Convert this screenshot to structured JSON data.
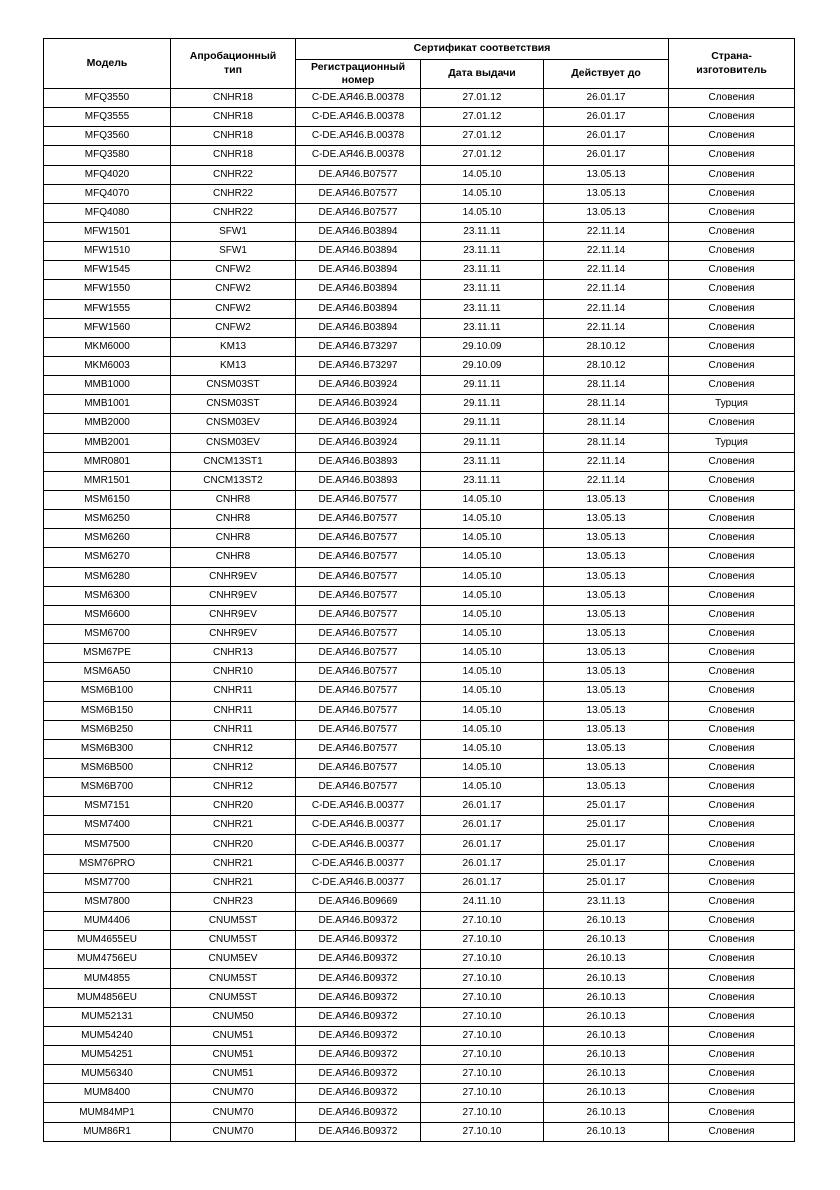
{
  "table": {
    "headers": {
      "model": "Модель",
      "approbation_type": "Апробационный\nтип",
      "certificate_group": "Сертификат соответствия",
      "reg_number": "Регистрационный\nномер",
      "issue_date": "Дата выдачи",
      "valid_until": "Действует до",
      "country": "Страна-\nизготовитель"
    },
    "rows": [
      [
        "MFQ3550",
        "CNHR18",
        "C-DE.АЯ46.B.00378",
        "27.01.12",
        "26.01.17",
        "Словения"
      ],
      [
        "MFQ3555",
        "CNHR18",
        "C-DE.АЯ46.B.00378",
        "27.01.12",
        "26.01.17",
        "Словения"
      ],
      [
        "MFQ3560",
        "CNHR18",
        "C-DE.АЯ46.B.00378",
        "27.01.12",
        "26.01.17",
        "Словения"
      ],
      [
        "MFQ3580",
        "CNHR18",
        "C-DE.АЯ46.B.00378",
        "27.01.12",
        "26.01.17",
        "Словения"
      ],
      [
        "MFQ4020",
        "CNHR22",
        "DE.АЯ46.B07577",
        "14.05.10",
        "13.05.13",
        "Словения"
      ],
      [
        "MFQ4070",
        "CNHR22",
        "DE.АЯ46.B07577",
        "14.05.10",
        "13.05.13",
        "Словения"
      ],
      [
        "MFQ4080",
        "CNHR22",
        "DE.АЯ46.B07577",
        "14.05.10",
        "13.05.13",
        "Словения"
      ],
      [
        "MFW1501",
        "SFW1",
        "DE.АЯ46.B03894",
        "23.11.11",
        "22.11.14",
        "Словения"
      ],
      [
        "MFW1510",
        "SFW1",
        "DE.АЯ46.B03894",
        "23.11.11",
        "22.11.14",
        "Словения"
      ],
      [
        "MFW1545",
        "CNFW2",
        "DE.АЯ46.B03894",
        "23.11.11",
        "22.11.14",
        "Словения"
      ],
      [
        "MFW1550",
        "CNFW2",
        "DE.АЯ46.B03894",
        "23.11.11",
        "22.11.14",
        "Словения"
      ],
      [
        "MFW1555",
        "CNFW2",
        "DE.АЯ46.B03894",
        "23.11.11",
        "22.11.14",
        "Словения"
      ],
      [
        "MFW1560",
        "CNFW2",
        "DE.АЯ46.B03894",
        "23.11.11",
        "22.11.14",
        "Словения"
      ],
      [
        "MKM6000",
        "KM13",
        "DE.АЯ46.B73297",
        "29.10.09",
        "28.10.12",
        "Словения"
      ],
      [
        "MKM6003",
        "KM13",
        "DE.АЯ46.B73297",
        "29.10.09",
        "28.10.12",
        "Словения"
      ],
      [
        "MMB1000",
        "CNSM03ST",
        "DE.АЯ46.B03924",
        "29.11.11",
        "28.11.14",
        "Словения"
      ],
      [
        "MMB1001",
        "CNSM03ST",
        "DE.АЯ46.B03924",
        "29.11.11",
        "28.11.14",
        "Турция"
      ],
      [
        "MMB2000",
        "CNSM03EV",
        "DE.АЯ46.B03924",
        "29.11.11",
        "28.11.14",
        "Словения"
      ],
      [
        "MMB2001",
        "CNSM03EV",
        "DE.АЯ46.B03924",
        "29.11.11",
        "28.11.14",
        "Турция"
      ],
      [
        "MMR0801",
        "CNCM13ST1",
        "DE.АЯ46.B03893",
        "23.11.11",
        "22.11.14",
        "Словения"
      ],
      [
        "MMR1501",
        "CNCM13ST2",
        "DE.АЯ46.B03893",
        "23.11.11",
        "22.11.14",
        "Словения"
      ],
      [
        "MSM6150",
        "CNHR8",
        "DE.АЯ46.B07577",
        "14.05.10",
        "13.05.13",
        "Словения"
      ],
      [
        "MSM6250",
        "CNHR8",
        "DE.АЯ46.B07577",
        "14.05.10",
        "13.05.13",
        "Словения"
      ],
      [
        "MSM6260",
        "CNHR8",
        "DE.АЯ46.B07577",
        "14.05.10",
        "13.05.13",
        "Словения"
      ],
      [
        "MSM6270",
        "CNHR8",
        "DE.АЯ46.B07577",
        "14.05.10",
        "13.05.13",
        "Словения"
      ],
      [
        "MSM6280",
        "CNHR9EV",
        "DE.АЯ46.B07577",
        "14.05.10",
        "13.05.13",
        "Словения"
      ],
      [
        "MSM6300",
        "CNHR9EV",
        "DE.АЯ46.B07577",
        "14.05.10",
        "13.05.13",
        "Словения"
      ],
      [
        "MSM6600",
        "CNHR9EV",
        "DE.АЯ46.B07577",
        "14.05.10",
        "13.05.13",
        "Словения"
      ],
      [
        "MSM6700",
        "CNHR9EV",
        "DE.АЯ46.B07577",
        "14.05.10",
        "13.05.13",
        "Словения"
      ],
      [
        "MSM67PE",
        "CNHR13",
        "DE.АЯ46.B07577",
        "14.05.10",
        "13.05.13",
        "Словения"
      ],
      [
        "MSM6A50",
        "CNHR10",
        "DE.АЯ46.B07577",
        "14.05.10",
        "13.05.13",
        "Словения"
      ],
      [
        "MSM6B100",
        "CNHR11",
        "DE.АЯ46.B07577",
        "14.05.10",
        "13.05.13",
        "Словения"
      ],
      [
        "MSM6B150",
        "CNHR11",
        "DE.АЯ46.B07577",
        "14.05.10",
        "13.05.13",
        "Словения"
      ],
      [
        "MSM6B250",
        "CNHR11",
        "DE.АЯ46.B07577",
        "14.05.10",
        "13.05.13",
        "Словения"
      ],
      [
        "MSM6B300",
        "CNHR12",
        "DE.АЯ46.B07577",
        "14.05.10",
        "13.05.13",
        "Словения"
      ],
      [
        "MSM6B500",
        "CNHR12",
        "DE.АЯ46.B07577",
        "14.05.10",
        "13.05.13",
        "Словения"
      ],
      [
        "MSM6B700",
        "CNHR12",
        "DE.АЯ46.B07577",
        "14.05.10",
        "13.05.13",
        "Словения"
      ],
      [
        "MSM7151",
        "CNHR20",
        "C-DE.АЯ46.B.00377",
        "26.01.17",
        "25.01.17",
        "Словения"
      ],
      [
        "MSM7400",
        "CNHR21",
        "C-DE.АЯ46.B.00377",
        "26.01.17",
        "25.01.17",
        "Словения"
      ],
      [
        "MSM7500",
        "CNHR20",
        "C-DE.АЯ46.B.00377",
        "26.01.17",
        "25.01.17",
        "Словения"
      ],
      [
        "MSM76PRO",
        "CNHR21",
        "C-DE.АЯ46.B.00377",
        "26.01.17",
        "25.01.17",
        "Словения"
      ],
      [
        "MSM7700",
        "CNHR21",
        "C-DE.АЯ46.B.00377",
        "26.01.17",
        "25.01.17",
        "Словения"
      ],
      [
        "MSM7800",
        "CNHR23",
        "DE.АЯ46.B09669",
        "24.11.10",
        "23.11.13",
        "Словения"
      ],
      [
        "MUM4406",
        "CNUM5ST",
        "DE.АЯ46.B09372",
        "27.10.10",
        "26.10.13",
        "Словения"
      ],
      [
        "MUM4655EU",
        "CNUM5ST",
        "DE.АЯ46.B09372",
        "27.10.10",
        "26.10.13",
        "Словения"
      ],
      [
        "MUM4756EU",
        "CNUM5EV",
        "DE.АЯ46.B09372",
        "27.10.10",
        "26.10.13",
        "Словения"
      ],
      [
        "MUM4855",
        "CNUM5ST",
        "DE.АЯ46.B09372",
        "27.10.10",
        "26.10.13",
        "Словения"
      ],
      [
        "MUM4856EU",
        "CNUM5ST",
        "DE.АЯ46.B09372",
        "27.10.10",
        "26.10.13",
        "Словения"
      ],
      [
        "MUM52131",
        "CNUM50",
        "DE.АЯ46.B09372",
        "27.10.10",
        "26.10.13",
        "Словения"
      ],
      [
        "MUM54240",
        "CNUM51",
        "DE.АЯ46.B09372",
        "27.10.10",
        "26.10.13",
        "Словения"
      ],
      [
        "MUM54251",
        "CNUM51",
        "DE.АЯ46.B09372",
        "27.10.10",
        "26.10.13",
        "Словения"
      ],
      [
        "MUM56340",
        "CNUM51",
        "DE.АЯ46.B09372",
        "27.10.10",
        "26.10.13",
        "Словения"
      ],
      [
        "MUM8400",
        "CNUM70",
        "DE.АЯ46.B09372",
        "27.10.10",
        "26.10.13",
        "Словения"
      ],
      [
        "MUM84MP1",
        "CNUM70",
        "DE.АЯ46.B09372",
        "27.10.10",
        "26.10.13",
        "Словения"
      ],
      [
        "MUM86R1",
        "CNUM70",
        "DE.АЯ46.B09372",
        "27.10.10",
        "26.10.13",
        "Словения"
      ]
    ]
  }
}
